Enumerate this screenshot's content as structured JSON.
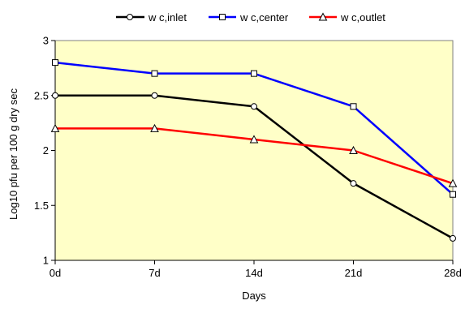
{
  "chart_data": {
    "type": "line",
    "title": "",
    "xlabel": "Days",
    "ylabel": "Log10 pfu per 100 g dry sec",
    "categories": [
      "0d",
      "7d",
      "14d",
      "21d",
      "28d"
    ],
    "ylim": [
      1,
      3
    ],
    "yticks": [
      "1",
      "1.5",
      "2",
      "2.5",
      "3"
    ],
    "grid": false,
    "legend_position": "top",
    "plot_background": "#FFFFC8",
    "series": [
      {
        "name": "w c,inlet",
        "values": [
          2.5,
          2.5,
          2.4,
          1.7,
          1.2
        ],
        "color": "#000000",
        "marker": "circle"
      },
      {
        "name": "w c,center",
        "values": [
          2.8,
          2.7,
          2.7,
          2.4,
          1.6
        ],
        "color": "#0000FF",
        "marker": "square"
      },
      {
        "name": "w c,outlet",
        "values": [
          2.2,
          2.2,
          2.1,
          2.0,
          1.7
        ],
        "color": "#FF0000",
        "marker": "triangle"
      }
    ]
  }
}
